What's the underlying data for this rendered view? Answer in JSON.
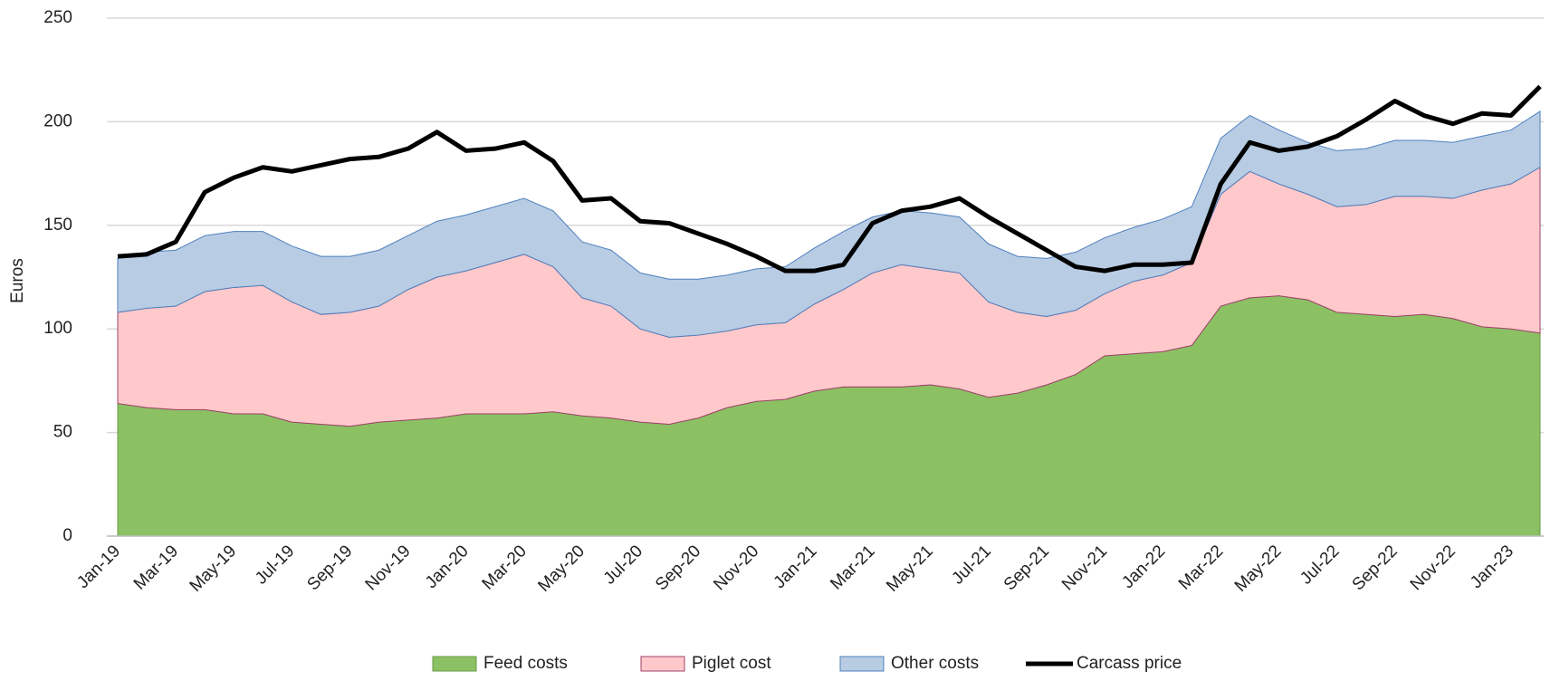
{
  "chart_data": {
    "type": "area",
    "stacked": true,
    "ylabel": "Euros",
    "categories": [
      "Jan-19",
      null,
      "Mar-19",
      null,
      "May-19",
      null,
      "Jul-19",
      null,
      "Sep-19",
      null,
      "Nov-19",
      null,
      "Jan-20",
      null,
      "Mar-20",
      null,
      "May-20",
      null,
      "Jul-20",
      null,
      "Sep-20",
      null,
      "Nov-20",
      null,
      "Jan-21",
      null,
      "Mar-21",
      null,
      "May-21",
      null,
      "Jul-21",
      null,
      "Sep-21",
      null,
      "Nov-21",
      null,
      "Jan-22",
      null,
      "Mar-22",
      null,
      "May-22",
      null,
      "Jul-22",
      null,
      "Sep-22",
      null,
      "Nov-22",
      null,
      "Jan-23",
      null
    ],
    "series": [
      {
        "name": "Feed costs",
        "type": "area",
        "color": "#8bc163",
        "edge": "#6a9a45",
        "values": [
          64,
          62,
          61,
          61,
          59,
          59,
          55,
          54,
          53,
          55,
          56,
          57,
          59,
          59,
          59,
          60,
          58,
          57,
          55,
          54,
          57,
          62,
          65,
          66,
          70,
          72,
          72,
          72,
          73,
          71,
          67,
          69,
          73,
          78,
          87,
          88,
          89,
          92,
          111,
          115,
          116,
          114,
          108,
          107,
          106,
          107,
          105,
          101,
          100,
          98
        ]
      },
      {
        "name": "Piglet cost",
        "type": "area",
        "color": "#ffc9cb",
        "edge": "#a0406a",
        "values": [
          44,
          48,
          50,
          57,
          61,
          62,
          58,
          53,
          55,
          56,
          63,
          68,
          69,
          73,
          77,
          70,
          57,
          54,
          45,
          42,
          40,
          37,
          37,
          37,
          42,
          47,
          55,
          59,
          56,
          56,
          46,
          39,
          33,
          31,
          30,
          35,
          37,
          40,
          54,
          61,
          54,
          51,
          51,
          53,
          58,
          57,
          58,
          66,
          70,
          80
        ]
      },
      {
        "name": "Other costs",
        "type": "area",
        "color": "#b8cce4",
        "edge": "#4f81bd",
        "values": [
          26,
          27,
          27,
          27,
          27,
          26,
          27,
          28,
          27,
          27,
          26,
          27,
          27,
          27,
          27,
          27,
          27,
          27,
          27,
          28,
          27,
          27,
          27,
          27,
          27,
          28,
          27,
          26,
          27,
          27,
          28,
          27,
          28,
          28,
          27,
          26,
          27,
          27,
          27,
          27,
          26,
          25,
          27,
          27,
          27,
          27,
          27,
          26,
          26,
          27
        ]
      },
      {
        "name": "Carcass price",
        "type": "line",
        "color": "#000000",
        "values": [
          135,
          136,
          142,
          166,
          173,
          178,
          176,
          179,
          182,
          183,
          187,
          195,
          186,
          187,
          190,
          181,
          162,
          163,
          152,
          151,
          146,
          141,
          135,
          128,
          128,
          131,
          151,
          157,
          159,
          163,
          154,
          146,
          138,
          130,
          128,
          131,
          131,
          132,
          170,
          190,
          186,
          188,
          193,
          201,
          210,
          203,
          199,
          204,
          203,
          217
        ]
      }
    ],
    "ylim": [
      0,
      250
    ],
    "yticks": [
      0,
      50,
      100,
      150,
      200,
      250
    ],
    "grid": true,
    "legend": "bottom"
  }
}
